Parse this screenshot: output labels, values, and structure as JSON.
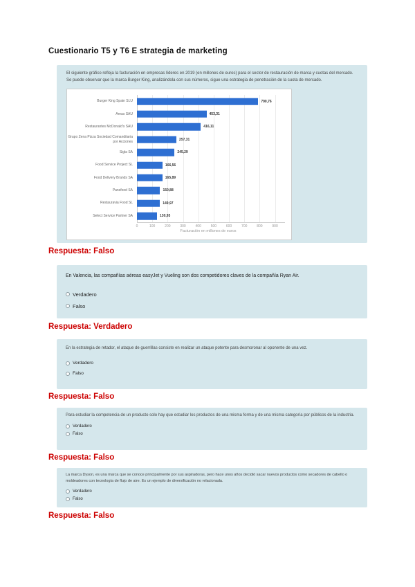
{
  "page": {
    "title": "Cuestionario T5 y T6 E strategia de marketing"
  },
  "questions": [
    {
      "text": "El siguiente gráfico refleja la facturación en empresas líderes en 2019 (en millones de euros) para el sector de restauración de marca y cuotas del mercado. Se puede observar que la marca Burger King, analizándola con sus números, sigue una estrategia de penetración de la cuota de mercado.",
      "answer": "Respuesta: Falso"
    },
    {
      "text": "En Valencia, las compañías aéreas easyJet y Vueling son dos competidores claves de la compañía Ryan Air.",
      "options": [
        "Verdadero",
        "Falso"
      ],
      "answer": "Respuesta: Verdadero"
    },
    {
      "text": "En la estrategia de retador, el ataque de guerrillas consiste en realizar un ataque potente para desmoronar al oponente de una vez.",
      "options": [
        "Verdadero",
        "Falso"
      ],
      "answer": "Respuesta: Falso"
    },
    {
      "text": "Para estudiar la competencia de un producto solo hay que estudiar los productos de una misma forma y de una misma categoría por públicos de la industria.",
      "options": [
        "Verdadero",
        "Falso"
      ],
      "answer": "Respuesta: Falso"
    },
    {
      "text": "La marca Dyson, es una marca que se conoce principalmente por sus aspiradoras, pero hace unos años decidió sacar nuevos productos como secadores de cabello o moldeadores con tecnología de flujo de aire. Es un ejemplo de diversificación no relacionada.",
      "options": [
        "Verdadero",
        "Falso"
      ],
      "answer": "Respuesta: Falso"
    }
  ],
  "chart_data": {
    "type": "bar",
    "orientation": "horizontal",
    "categories": [
      "Burger King Spain SLU",
      "Areas SAU",
      "Restaurantes McDonald's SAU",
      "Grupo Zena Pizza Sociedad Comanditaria por Acciones",
      "Sigla SA",
      "Food Service Project SL",
      "Food Delivery Brands SA",
      "Pansfood SA",
      "Restauravia Food SL",
      "Select Service Partner SA"
    ],
    "values": [
      790.76,
      453.31,
      416.11,
      257.31,
      245.29,
      166.56,
      165.89,
      150.88,
      149.97,
      130.93
    ],
    "value_labels": [
      "790,76",
      "453,31",
      "416,11",
      "257,31",
      "245,29",
      "166,56",
      "165,89",
      "150,88",
      "149,97",
      "130,93"
    ],
    "x_ticks": [
      0,
      100,
      200,
      300,
      400,
      500,
      600,
      700,
      800,
      900
    ],
    "xlim": [
      0,
      965
    ],
    "xlabel": "Facturación en millones de euros",
    "bar_color": "#2e6fd2",
    "grid": true,
    "legend": false
  }
}
